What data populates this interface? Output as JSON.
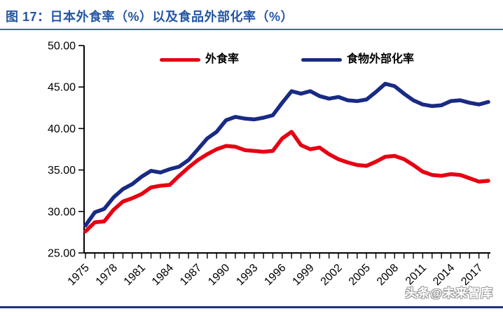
{
  "header": {
    "title": "图 17：日本外食率（%）以及食品外部化率（%）"
  },
  "watermark": {
    "text": "头条@未来智库"
  },
  "colors": {
    "title": "#2456a4",
    "title_rule": "#1b7f9e",
    "bottom_rule": "#1d3181",
    "axis": "#000000",
    "series_red": "#e60012",
    "series_blue": "#192a84"
  },
  "chart_data": {
    "type": "line",
    "title": "日本外食率（%）以及食品外部化率（%）",
    "grid": false,
    "legend_position": "top",
    "x": [
      1975,
      1976,
      1977,
      1978,
      1979,
      1980,
      1981,
      1982,
      1983,
      1984,
      1985,
      1986,
      1987,
      1988,
      1989,
      1990,
      1991,
      1992,
      1993,
      1994,
      1995,
      1996,
      1997,
      1998,
      1999,
      2000,
      2001,
      2002,
      2003,
      2004,
      2005,
      2006,
      2007,
      2008,
      2009,
      2010,
      2011,
      2012,
      2013,
      2014,
      2015,
      2016,
      2017,
      2018
    ],
    "x_tick_labels": [
      "1975",
      "1978",
      "1981",
      "1984",
      "1987",
      "1990",
      "1993",
      "1996",
      "1999",
      "2002",
      "2005",
      "2008",
      "2011",
      "2014",
      "2017"
    ],
    "y_axis": {
      "min": 25,
      "max": 50,
      "step": 5,
      "tick_labels": [
        "25.00",
        "30.00",
        "35.00",
        "40.00",
        "45.00",
        "50.00"
      ]
    },
    "legend": [
      {
        "label": "外食率",
        "color": "#e60012"
      },
      {
        "label": "食物外部化率",
        "color": "#192a84"
      }
    ],
    "series": [
      {
        "name": "外食率",
        "color": "#e60012",
        "values": [
          27.6,
          28.7,
          28.8,
          30.2,
          31.2,
          31.6,
          32.1,
          32.9,
          33.1,
          33.2,
          34.3,
          35.3,
          36.2,
          36.9,
          37.5,
          37.9,
          37.8,
          37.4,
          37.3,
          37.2,
          37.3,
          38.8,
          39.6,
          38.0,
          37.5,
          37.7,
          36.9,
          36.3,
          35.9,
          35.6,
          35.5,
          36.0,
          36.6,
          36.7,
          36.3,
          35.6,
          34.8,
          34.4,
          34.3,
          34.5,
          34.4,
          34.0,
          33.6,
          33.7
        ]
      },
      {
        "name": "食物外部化率",
        "color": "#192a84",
        "values": [
          28.3,
          29.9,
          30.3,
          31.7,
          32.7,
          33.3,
          34.2,
          34.9,
          34.7,
          35.1,
          35.4,
          36.2,
          37.5,
          38.8,
          39.6,
          41.0,
          41.4,
          41.2,
          41.1,
          41.3,
          41.6,
          43.1,
          44.5,
          44.2,
          44.5,
          43.9,
          43.6,
          43.8,
          43.4,
          43.3,
          43.5,
          44.4,
          45.4,
          45.1,
          44.2,
          43.4,
          42.9,
          42.7,
          42.8,
          43.3,
          43.4,
          43.1,
          42.9,
          43.2
        ]
      }
    ]
  }
}
